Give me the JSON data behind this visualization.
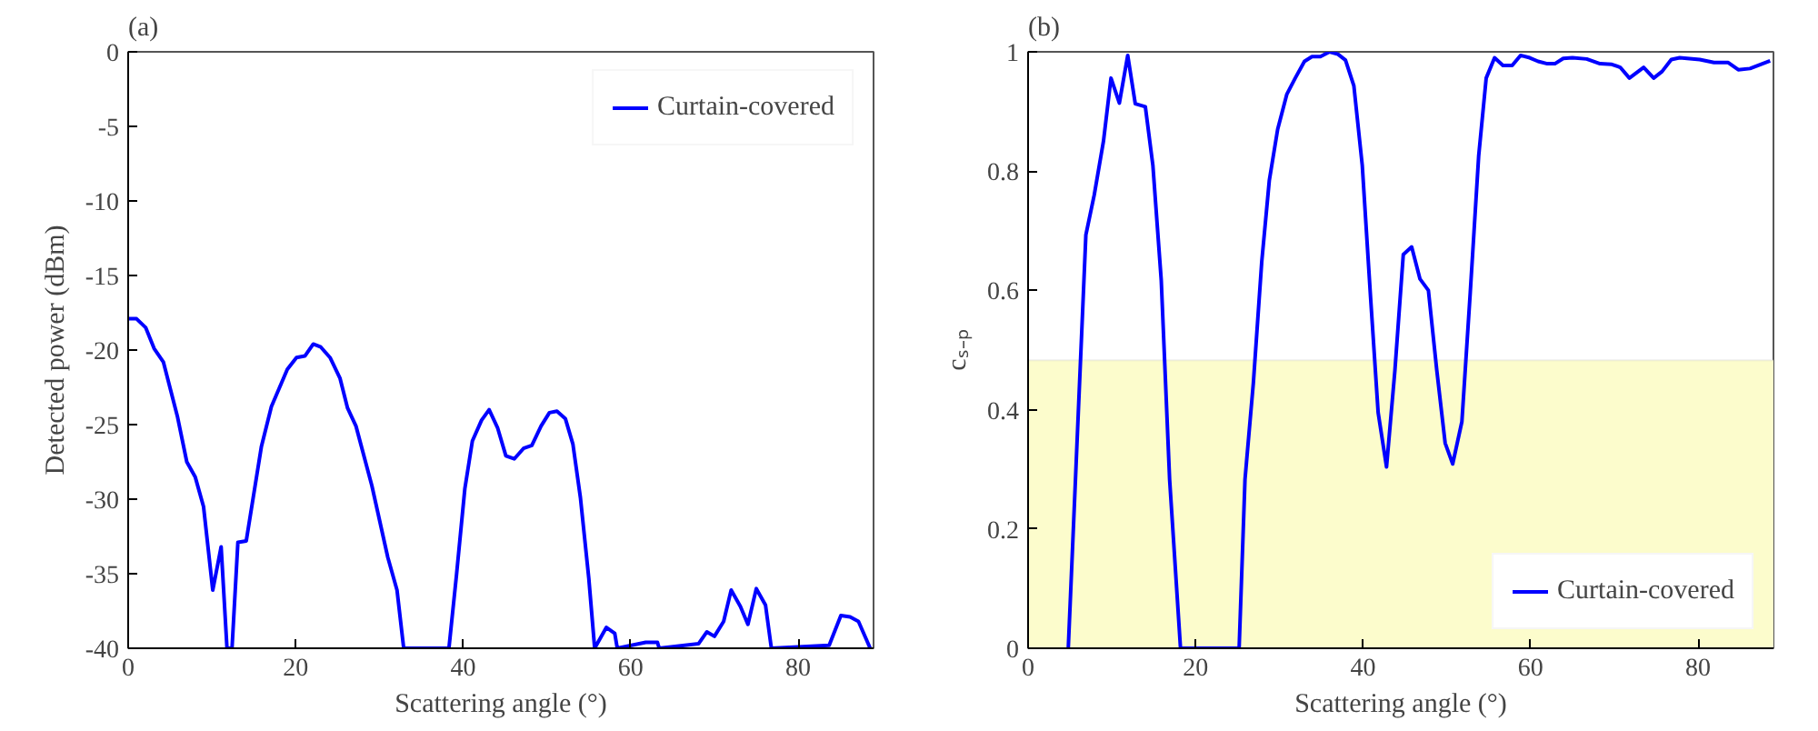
{
  "chart_data": [
    {
      "type": "line",
      "title": "(a)",
      "xlabel": "Scattering angle (°)",
      "ylabel": "Detected power (dBm)",
      "xlim": [
        0,
        89
      ],
      "xticks": [
        0,
        20,
        40,
        60,
        80
      ],
      "ylim": [
        -40,
        0
      ],
      "yticks": [
        -40,
        -35,
        -30,
        -25,
        -20,
        -15,
        -10,
        -5,
        0
      ],
      "grid": false,
      "legend": "top right",
      "line_style": "solid",
      "series": [
        {
          "name": "Curtain-covered",
          "color": "#0000ff",
          "x": [
            0,
            1,
            2.1,
            3.1,
            4.2,
            5.9,
            7,
            8,
            9,
            10.1,
            11.1,
            11.8,
            12.4,
            13.1,
            14.1,
            15.9,
            17.1,
            19,
            20.1,
            21.1,
            22.1,
            23,
            24.1,
            25.3,
            26.2,
            27.2,
            29.1,
            31,
            32.1,
            32.9,
            38.3,
            39.2,
            40.2,
            41.1,
            42.2,
            43.1,
            44.1,
            45.1,
            46.1,
            47.2,
            48.2,
            49.3,
            50.3,
            51.2,
            52.2,
            53.1,
            54,
            55,
            55.7,
            57.1,
            58.1,
            58.4,
            61.8,
            63.2,
            63.4,
            68.1,
            69.1,
            70,
            71.1,
            72,
            73.1,
            74,
            75,
            76.1,
            76.8,
            83.7,
            85.1,
            86.2,
            87.2,
            88.6
          ],
          "values": [
            -17.9,
            -17.9,
            -18.5,
            -19.9,
            -20.8,
            -24.5,
            -27.5,
            -28.5,
            -30.5,
            -36.1,
            -33.2,
            -40,
            -40,
            -32.9,
            -32.8,
            -26.5,
            -23.8,
            -21.3,
            -20.5,
            -20.4,
            -19.6,
            -19.8,
            -20.5,
            -21.9,
            -23.9,
            -25.1,
            -29.1,
            -33.9,
            -36.1,
            -40,
            -40,
            -35.1,
            -29.3,
            -26.1,
            -24.7,
            -24,
            -25.2,
            -27.1,
            -27.3,
            -26.6,
            -26.4,
            -25.1,
            -24.2,
            -24.1,
            -24.6,
            -26.3,
            -29.9,
            -35.3,
            -40,
            -38.6,
            -39,
            -40,
            -39.6,
            -39.6,
            -40,
            -39.7,
            -38.9,
            -39.2,
            -38.2,
            -36.1,
            -37.2,
            -38.4,
            -36,
            -37.1,
            -40,
            -39.8,
            -37.8,
            -37.9,
            -38.2,
            -40
          ]
        }
      ]
    },
    {
      "type": "line",
      "title": "(b)",
      "xlabel": "Scattering angle (°)",
      "ylabel": "cₛ₋ₚ",
      "xlim": [
        0,
        89
      ],
      "xticks": [
        0,
        20,
        40,
        60,
        80
      ],
      "ylim": [
        0,
        1
      ],
      "yticks": [
        0,
        0.2,
        0.4,
        0.6,
        0.8,
        1
      ],
      "grid": false,
      "legend": "bottom right",
      "line_style": "solid",
      "bands": [
        {
          "axis": "y",
          "from": 0,
          "to": 0.483,
          "color": "#fcfccc"
        }
      ],
      "series": [
        {
          "name": "Curtain-covered",
          "color": "#0000ff",
          "x": [
            4.8,
            6.9,
            7.9,
            9,
            9.9,
            10.9,
            11.9,
            12.8,
            14,
            14.9,
            15.9,
            16.9,
            18.2,
            25.2,
            25.9,
            26.9,
            27.9,
            28.8,
            29.8,
            30.9,
            31.9,
            33,
            33.9,
            34.9,
            36,
            37,
            37.9,
            38.9,
            39.9,
            40.9,
            41.8,
            42.8,
            43.8,
            44.8,
            45.8,
            46.8,
            47.8,
            48.8,
            49.8,
            50.7,
            51.8,
            52.8,
            53.8,
            54.7,
            55.7,
            56.7,
            57.8,
            58.8,
            59.9,
            60.9,
            62,
            62.9,
            63.9,
            65,
            66.7,
            68.3,
            69.7,
            70.7,
            71.8,
            73.5,
            74.7,
            75.7,
            76.8,
            77.8,
            80.2,
            81.9,
            83.6,
            84.8,
            86.2,
            88.6
          ],
          "values": [
            0,
            0.693,
            0.76,
            0.85,
            0.956,
            0.914,
            0.994,
            0.913,
            0.908,
            0.81,
            0.617,
            0.283,
            0,
            0,
            0.283,
            0.445,
            0.648,
            0.784,
            0.87,
            0.929,
            0.956,
            0.984,
            0.992,
            0.992,
            1.0,
            0.996,
            0.986,
            0.943,
            0.81,
            0.587,
            0.395,
            0.304,
            0.466,
            0.66,
            0.673,
            0.619,
            0.6,
            0.466,
            0.344,
            0.309,
            0.38,
            0.597,
            0.825,
            0.956,
            0.99,
            0.977,
            0.977,
            0.994,
            0.99,
            0.984,
            0.98,
            0.98,
            0.989,
            0.99,
            0.988,
            0.98,
            0.979,
            0.974,
            0.956,
            0.974,
            0.956,
            0.967,
            0.987,
            0.99,
            0.987,
            0.982,
            0.982,
            0.97,
            0.972,
            0.985
          ]
        }
      ]
    }
  ]
}
